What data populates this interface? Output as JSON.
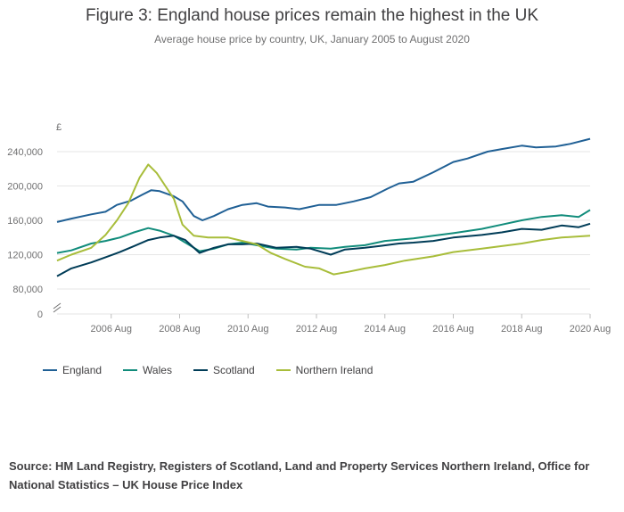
{
  "title": "Figure 3: England house prices remain the highest in the UK",
  "subtitle": "Average house price by country, UK, January 2005 to August 2020",
  "source": "Source: HM Land Registry, Registers of Scotland, Land and Property Services Northern Ireland, Office for National Statistics – UK House Price Index",
  "chart_data": {
    "type": "line",
    "ylabel": "£",
    "y_ticks": [
      "240,000",
      "200,000",
      "160,000",
      "120,000",
      "80,000",
      "0"
    ],
    "y_tick_values": [
      240000,
      200000,
      160000,
      120000,
      80000
    ],
    "y_axis_break": true,
    "ylim_visible": [
      70000,
      250000
    ],
    "x_ticks": [
      "2006 Aug",
      "2008 Aug",
      "2010 Aug",
      "2012 Aug",
      "2014 Aug",
      "2016 Aug",
      "2018 Aug",
      "2020 Aug"
    ],
    "x_tick_dates": [
      "2006-08",
      "2008-08",
      "2010-08",
      "2012-08",
      "2014-08",
      "2016-08",
      "2018-08",
      "2020-08"
    ],
    "x_range": [
      "2005-01",
      "2020-08"
    ],
    "grid": "horizontal",
    "legend_position": "bottom-left",
    "series": [
      {
        "name": "England",
        "color": "#206095",
        "points": [
          [
            "2005-01",
            158000
          ],
          [
            "2005-06",
            162000
          ],
          [
            "2006-01",
            167000
          ],
          [
            "2006-06",
            170000
          ],
          [
            "2006-10",
            178000
          ],
          [
            "2007-03",
            183000
          ],
          [
            "2007-07",
            190000
          ],
          [
            "2007-10",
            195000
          ],
          [
            "2008-01",
            194000
          ],
          [
            "2008-06",
            188000
          ],
          [
            "2008-09",
            182000
          ],
          [
            "2009-01",
            165000
          ],
          [
            "2009-04",
            160000
          ],
          [
            "2009-08",
            165000
          ],
          [
            "2010-01",
            173000
          ],
          [
            "2010-06",
            178000
          ],
          [
            "2010-11",
            180000
          ],
          [
            "2011-03",
            176000
          ],
          [
            "2011-09",
            175000
          ],
          [
            "2012-02",
            173000
          ],
          [
            "2012-09",
            178000
          ],
          [
            "2013-03",
            178000
          ],
          [
            "2013-09",
            182000
          ],
          [
            "2014-03",
            187000
          ],
          [
            "2014-09",
            197000
          ],
          [
            "2015-01",
            203000
          ],
          [
            "2015-06",
            205000
          ],
          [
            "2016-01",
            216000
          ],
          [
            "2016-08",
            228000
          ],
          [
            "2017-01",
            232000
          ],
          [
            "2017-08",
            240000
          ],
          [
            "2018-01",
            243000
          ],
          [
            "2018-08",
            247000
          ],
          [
            "2019-01",
            245000
          ],
          [
            "2019-08",
            246000
          ],
          [
            "2020-01",
            249000
          ],
          [
            "2020-08",
            255000
          ]
        ]
      },
      {
        "name": "Wales",
        "color": "#118c7b",
        "points": [
          [
            "2005-01",
            122000
          ],
          [
            "2005-06",
            125000
          ],
          [
            "2006-01",
            133000
          ],
          [
            "2006-06",
            136000
          ],
          [
            "2006-11",
            140000
          ],
          [
            "2007-04",
            146000
          ],
          [
            "2007-09",
            151000
          ],
          [
            "2008-01",
            148000
          ],
          [
            "2008-06",
            142000
          ],
          [
            "2008-11",
            132000
          ],
          [
            "2009-03",
            124000
          ],
          [
            "2009-08",
            127000
          ],
          [
            "2010-01",
            132000
          ],
          [
            "2010-06",
            134000
          ],
          [
            "2010-11",
            131000
          ],
          [
            "2011-06",
            127000
          ],
          [
            "2012-01",
            126000
          ],
          [
            "2012-06",
            128000
          ],
          [
            "2013-01",
            127000
          ],
          [
            "2013-06",
            129000
          ],
          [
            "2014-01",
            131000
          ],
          [
            "2014-08",
            136000
          ],
          [
            "2015-06",
            139000
          ],
          [
            "2016-01",
            142000
          ],
          [
            "2016-08",
            145000
          ],
          [
            "2017-06",
            150000
          ],
          [
            "2018-01",
            155000
          ],
          [
            "2018-08",
            160000
          ],
          [
            "2019-03",
            164000
          ],
          [
            "2019-10",
            166000
          ],
          [
            "2020-04",
            164000
          ],
          [
            "2020-08",
            172000
          ]
        ]
      },
      {
        "name": "Scotland",
        "color": "#003c57",
        "points": [
          [
            "2005-01",
            95000
          ],
          [
            "2005-06",
            104000
          ],
          [
            "2006-01",
            111000
          ],
          [
            "2006-06",
            117000
          ],
          [
            "2006-11",
            123000
          ],
          [
            "2007-04",
            130000
          ],
          [
            "2007-09",
            137000
          ],
          [
            "2008-01",
            140000
          ],
          [
            "2008-06",
            142000
          ],
          [
            "2008-10",
            137000
          ],
          [
            "2009-03",
            122000
          ],
          [
            "2009-08",
            128000
          ],
          [
            "2010-01",
            132000
          ],
          [
            "2010-06",
            132000
          ],
          [
            "2010-11",
            133000
          ],
          [
            "2011-06",
            128000
          ],
          [
            "2012-01",
            129000
          ],
          [
            "2012-06",
            127000
          ],
          [
            "2013-01",
            120000
          ],
          [
            "2013-06",
            126000
          ],
          [
            "2014-01",
            128000
          ],
          [
            "2014-06",
            130000
          ],
          [
            "2015-01",
            133000
          ],
          [
            "2015-06",
            134000
          ],
          [
            "2016-01",
            136000
          ],
          [
            "2016-08",
            140000
          ],
          [
            "2017-06",
            143000
          ],
          [
            "2018-01",
            146000
          ],
          [
            "2018-08",
            150000
          ],
          [
            "2019-03",
            149000
          ],
          [
            "2019-10",
            154000
          ],
          [
            "2020-04",
            152000
          ],
          [
            "2020-08",
            156000
          ]
        ]
      },
      {
        "name": "Northern Ireland",
        "color": "#a8bd3a",
        "points": [
          [
            "2005-01",
            113000
          ],
          [
            "2005-06",
            120000
          ],
          [
            "2006-01",
            128000
          ],
          [
            "2006-06",
            143000
          ],
          [
            "2006-10",
            160000
          ],
          [
            "2007-02",
            180000
          ],
          [
            "2007-06",
            210000
          ],
          [
            "2007-09",
            225000
          ],
          [
            "2007-12",
            215000
          ],
          [
            "2008-03",
            200000
          ],
          [
            "2008-06",
            185000
          ],
          [
            "2008-09",
            155000
          ],
          [
            "2009-01",
            142000
          ],
          [
            "2009-06",
            140000
          ],
          [
            "2010-01",
            140000
          ],
          [
            "2010-06",
            136000
          ],
          [
            "2010-11",
            132000
          ],
          [
            "2011-04",
            122000
          ],
          [
            "2011-09",
            115000
          ],
          [
            "2012-04",
            106000
          ],
          [
            "2012-09",
            104000
          ],
          [
            "2013-02",
            97000
          ],
          [
            "2013-07",
            100000
          ],
          [
            "2014-01",
            104000
          ],
          [
            "2014-08",
            108000
          ],
          [
            "2015-03",
            113000
          ],
          [
            "2016-01",
            118000
          ],
          [
            "2016-08",
            123000
          ],
          [
            "2017-06",
            127000
          ],
          [
            "2018-01",
            130000
          ],
          [
            "2018-08",
            133000
          ],
          [
            "2019-03",
            137000
          ],
          [
            "2019-10",
            140000
          ],
          [
            "2020-08",
            142000
          ]
        ]
      }
    ]
  }
}
